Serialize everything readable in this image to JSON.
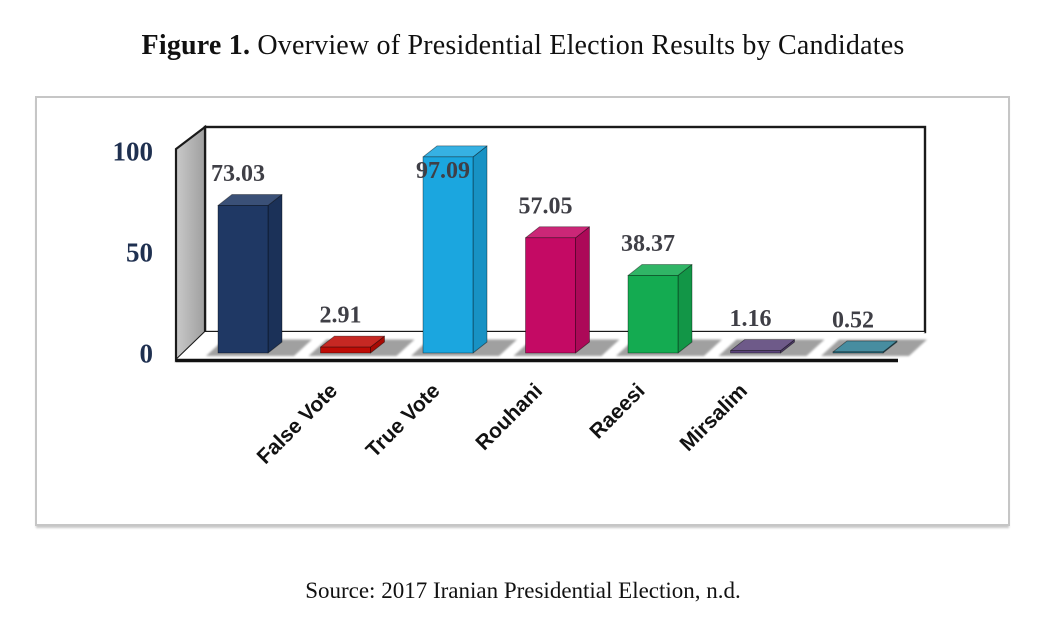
{
  "page": {
    "background": "#ffffff"
  },
  "figure": {
    "title_prefix": "Figure 1.",
    "title_rest": " Overview of Presidential Election Results by Candidates",
    "source_caption": "Source: 2017 Iranian Presidential Election, n.d."
  },
  "chart_data": {
    "type": "bar",
    "style": "3d-clustered-column",
    "title": "",
    "categories": [
      "",
      "False Vote",
      "True Vote",
      "Rouhani",
      "Raeesi",
      "Mirsalim",
      ""
    ],
    "values": [
      73.03,
      2.91,
      97.09,
      57.05,
      38.37,
      1.16,
      0.52
    ],
    "data_labels": [
      "73.03",
      "2.91",
      "97.09",
      "57.05",
      "38.37",
      "1.16",
      "0.52"
    ],
    "bar_colors": [
      "#1F3864",
      "#BE0B05",
      "#1BA6DF",
      "#C40A64",
      "#14AB51",
      "#5A4379",
      "#2E7E93"
    ],
    "xlabel": "",
    "ylabel": "",
    "y_ticks": [
      0,
      50,
      100
    ],
    "ylim": [
      0,
      100
    ],
    "grid": false,
    "legend": "none",
    "colors": {
      "tick_label": "#1F3050",
      "value_label": "#3F3F46",
      "category_label": "#121212",
      "wall_fill_light": "#c9c9c9",
      "wall_fill_dark": "#9f9f9f",
      "shadow": "#8c8c8c",
      "axis_line": "#111111",
      "wall_stroke": "#1a1a1a"
    }
  }
}
